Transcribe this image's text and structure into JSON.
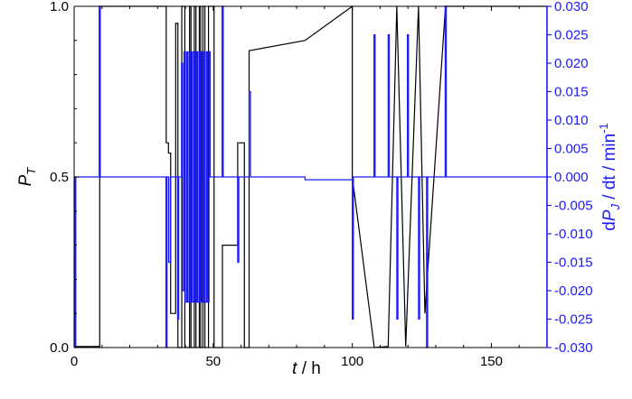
{
  "chart_data": {
    "type": "line",
    "xlabel": {
      "var": "t",
      "rest": " / h"
    },
    "ylabel_left": {
      "var": "P",
      "sub": "T"
    },
    "ylabel_right": {
      "pre": "d",
      "var": "P",
      "sub": "J",
      "rest": " / dt / min",
      "sup": "-1"
    },
    "xlim": [
      0,
      170
    ],
    "ylim_left": [
      0,
      1
    ],
    "ylim_right": [
      -0.03,
      0.03
    ],
    "x_ticks": [
      "0",
      "50",
      "100",
      "150"
    ],
    "y_ticks_left": [
      "0.0",
      "0.5",
      "1.0"
    ],
    "y_ticks_right": [
      "-0.030",
      "-0.025",
      "-0.020",
      "-0.015",
      "-0.010",
      "-0.005",
      "0.000",
      "0.005",
      "0.010",
      "0.015",
      "0.020",
      "0.025",
      "0.030"
    ],
    "colors": {
      "series_pt": "#000000",
      "series_dpj": "#1a1aff",
      "right_axis": "#1a1aff"
    },
    "series": [
      {
        "axis": "left",
        "x": [
          0,
          0.4,
          0.4,
          9.2,
          9.2,
          33.1,
          33.1,
          33.9,
          33.9,
          34.7,
          34.7,
          36.5,
          36.5,
          37.3,
          37.3,
          38.7,
          38.7,
          39.8,
          39.8,
          41.5,
          41.5,
          42.0,
          42.0,
          43.2,
          43.2,
          43.8,
          43.8,
          45.0,
          45.0,
          45.5,
          45.5,
          46.3,
          46.3,
          47.0,
          47.0,
          48.3,
          48.3,
          50.3,
          50.3,
          53.3,
          53.3,
          58.8,
          58.8,
          61.2,
          61.2,
          62.9,
          62.9,
          83.0,
          100.0,
          100.0,
          107.9,
          107.9,
          112.9,
          112.9,
          116.0,
          116.0,
          119.2,
          119.2,
          123.8,
          123.8,
          126.1,
          126.1,
          133.5,
          133.5,
          170
        ],
        "y": [
          0.0,
          0.0,
          0.003,
          0.003,
          1.0,
          1.0,
          0.6,
          0.6,
          0.57,
          0.57,
          0.1,
          0.1,
          0.95,
          0.95,
          0.0,
          0.0,
          1.0,
          1.0,
          0.0,
          0.0,
          1.0,
          1.0,
          0.0,
          0.0,
          1.0,
          1.0,
          0.0,
          0.0,
          1.0,
          1.0,
          0.0,
          0.0,
          1.0,
          1.0,
          0.0,
          0.0,
          1.0,
          1.0,
          0.0,
          0.0,
          0.3,
          0.3,
          0.6,
          0.6,
          0.0,
          0.0,
          0.87,
          0.9,
          1.0,
          0.5,
          0.0,
          0.0,
          0.003,
          0.003,
          1.0,
          1.0,
          0.003,
          0.003,
          1.0,
          1.0,
          0.1,
          0.1,
          1.0,
          1.0,
          1.0
        ]
      },
      {
        "axis": "right",
        "x": [
          0,
          0.3,
          0.3,
          0.6,
          0.6,
          9.0,
          9.0,
          9.4,
          9.4,
          33.0,
          33.0,
          33.4,
          33.4,
          34.0,
          34.0,
          34.6,
          34.6,
          37.2,
          37.2,
          37.6,
          37.6,
          38.6,
          38.6,
          39.0,
          39.0,
          39.5,
          39.5,
          39.9,
          39.9,
          40.4,
          40.4,
          40.8,
          40.8,
          41.3,
          41.3,
          41.7,
          41.7,
          42.2,
          42.2,
          42.6,
          42.6,
          43.1,
          43.1,
          43.5,
          43.5,
          44.0,
          44.0,
          44.4,
          44.4,
          44.9,
          44.9,
          45.3,
          45.3,
          45.8,
          45.8,
          46.2,
          46.2,
          46.7,
          46.7,
          47.1,
          47.1,
          47.6,
          47.6,
          48.0,
          48.0,
          48.5,
          48.5,
          48.9,
          48.9,
          53.2,
          53.2,
          53.6,
          53.6,
          58.8,
          58.8,
          59.2,
          59.2,
          62.9,
          62.9,
          63.4,
          63.4,
          83.0,
          83.0,
          100.0,
          100.0,
          100.4,
          100.4,
          107.8,
          107.8,
          108.2,
          108.2,
          112.9,
          112.9,
          113.3,
          113.3,
          116.0,
          116.0,
          116.4,
          116.4,
          119.8,
          119.8,
          120.2,
          120.2,
          123.8,
          123.8,
          124.2,
          124.2,
          126.7,
          126.7,
          127.1,
          127.1,
          133.4,
          133.4,
          133.8,
          133.8,
          170
        ],
        "y": [
          0,
          0,
          -0.03,
          -0.03,
          0,
          0,
          0.03,
          0.03,
          0,
          0,
          -0.03,
          -0.03,
          0,
          0,
          -0.015,
          -0.015,
          0,
          0,
          -0.025,
          -0.025,
          0,
          0,
          0.02,
          0.02,
          -0.02,
          -0.02,
          0.022,
          0.022,
          -0.022,
          -0.022,
          0.022,
          0.022,
          -0.022,
          -0.022,
          0.022,
          0.022,
          -0.022,
          -0.022,
          0.022,
          0.022,
          -0.022,
          -0.022,
          0.022,
          0.022,
          -0.022,
          -0.022,
          0.022,
          0.022,
          -0.022,
          -0.022,
          0.022,
          0.022,
          -0.022,
          -0.022,
          0.022,
          0.022,
          -0.022,
          -0.022,
          0.022,
          0.022,
          -0.022,
          -0.022,
          0.022,
          0.022,
          -0.022,
          -0.022,
          0.022,
          0.022,
          0,
          0,
          0.03,
          0.03,
          0,
          0,
          -0.015,
          -0.015,
          0,
          0,
          0.015,
          0.015,
          0,
          0,
          -0.0005,
          -0.0005,
          -0.025,
          -0.025,
          0,
          0,
          0.025,
          0.025,
          0,
          0,
          0.025,
          0.025,
          0,
          0,
          -0.025,
          -0.025,
          0,
          0,
          0.025,
          0.025,
          0,
          0,
          -0.025,
          -0.025,
          0,
          0,
          -0.03,
          -0.03,
          0,
          0,
          0.03,
          0.03,
          0,
          0
        ]
      }
    ]
  }
}
